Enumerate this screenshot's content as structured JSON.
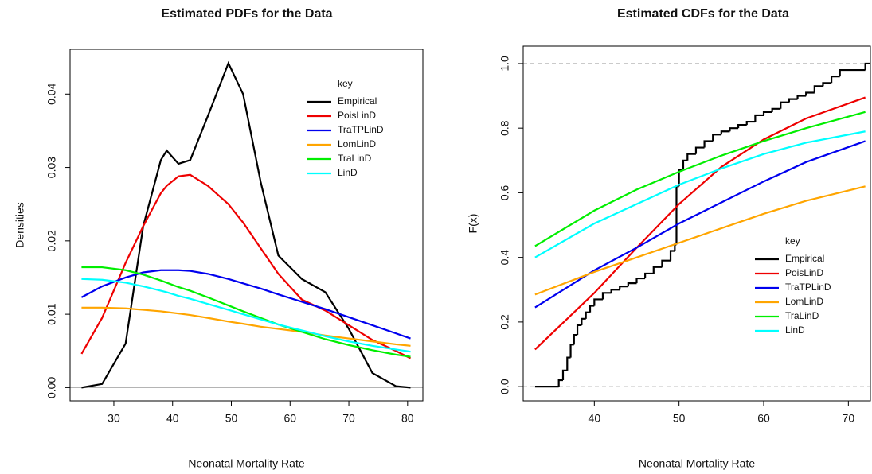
{
  "chart_data": [
    {
      "type": "line",
      "title": "Estimated PDFs for the Data",
      "x_label": "Neonatal Mortality Rate",
      "y_label": "Densities",
      "legend_title": "key",
      "legend": "top-right",
      "xlim": [
        22.55,
        82.6
      ],
      "ylim": [
        -0.0018,
        0.0461
      ],
      "xticks": [
        30,
        40,
        50,
        60,
        70,
        80
      ],
      "yticks": [
        {
          "value": 0,
          "label": "0.00"
        },
        {
          "value": 0.01,
          "label": "0.01"
        },
        {
          "value": 0.02,
          "label": "0.02"
        },
        {
          "value": 0.03,
          "label": "0.03"
        },
        {
          "value": 0.04,
          "label": "0.04"
        }
      ],
      "reference_lines": [
        0
      ],
      "reference_line_style": "solid",
      "x": [
        24.5,
        28,
        32,
        35,
        38,
        39,
        41,
        43,
        46,
        49.5,
        52,
        55,
        58,
        62,
        66,
        70,
        74,
        78,
        80.5
      ],
      "series": [
        {
          "name": "Empirical",
          "color": "#000000",
          "values": [
            0,
            0.0005,
            0.006,
            0.022,
            0.031,
            0.0323,
            0.0305,
            0.031,
            0.037,
            0.0442,
            0.04,
            0.028,
            0.018,
            0.0148,
            0.013,
            0.008,
            0.002,
            0.0002,
            0
          ]
        },
        {
          "name": "PoisLinD",
          "color": "#ee0000",
          "values": [
            0.0046,
            0.0095,
            0.017,
            0.022,
            0.0265,
            0.0275,
            0.0288,
            0.029,
            0.0275,
            0.025,
            0.0225,
            0.019,
            0.0155,
            0.012,
            0.0105,
            0.0085,
            0.0065,
            0.005,
            0.004
          ]
        },
        {
          "name": "TraTPLinD",
          "color": "#0000ee",
          "values": [
            0.0123,
            0.0138,
            0.015,
            0.0157,
            0.016,
            0.016,
            0.016,
            0.0159,
            0.0155,
            0.0148,
            0.0142,
            0.0135,
            0.0127,
            0.0117,
            0.0107,
            0.0096,
            0.0085,
            0.0074,
            0.0067
          ]
        },
        {
          "name": "LomLinD",
          "color": "#ffa500",
          "values": [
            0.0109,
            0.0109,
            0.0108,
            0.0106,
            0.0104,
            0.0103,
            0.0101,
            0.0099,
            0.0095,
            0.009,
            0.0087,
            0.0083,
            0.008,
            0.0076,
            0.0071,
            0.0067,
            0.0063,
            0.0059,
            0.0057
          ]
        },
        {
          "name": "TraLinD",
          "color": "#00ee00",
          "values": [
            0.0164,
            0.0164,
            0.016,
            0.0154,
            0.0146,
            0.0143,
            0.0137,
            0.0132,
            0.0123,
            0.0112,
            0.0104,
            0.0095,
            0.0086,
            0.0076,
            0.0066,
            0.0058,
            0.0051,
            0.0045,
            0.0042
          ]
        },
        {
          "name": "LinD",
          "color": "#00ffff",
          "values": [
            0.0148,
            0.0147,
            0.0143,
            0.0138,
            0.0132,
            0.013,
            0.0125,
            0.0121,
            0.0114,
            0.0106,
            0.01,
            0.0093,
            0.0086,
            0.0078,
            0.007,
            0.0063,
            0.0057,
            0.0052,
            0.0049
          ]
        }
      ]
    },
    {
      "type": "line",
      "title": "Estimated CDFs for the Data",
      "x_label": "Neonatal Mortality Rate",
      "y_label": "F(x)",
      "legend_title": "key",
      "legend": "bottom-right",
      "xlim": [
        31.6,
        72.6
      ],
      "ylim": [
        -0.044,
        1.054
      ],
      "xticks": [
        40,
        50,
        60,
        70
      ],
      "yticks": [
        {
          "value": 0,
          "label": "0.0"
        },
        {
          "value": 0.2,
          "label": "0.2"
        },
        {
          "value": 0.4,
          "label": "0.4"
        },
        {
          "value": 0.6,
          "label": "0.6"
        },
        {
          "value": 0.8,
          "label": "0.8"
        },
        {
          "value": 1,
          "label": "1.0"
        }
      ],
      "reference_lines": [
        0,
        1
      ],
      "reference_line_style": "dashed",
      "series": [
        {
          "name": "Empirical",
          "color": "#000000",
          "step": true,
          "x": [
            33,
            35.8,
            36.3,
            36.8,
            37.2,
            37.6,
            38,
            38.5,
            39,
            39.5,
            40,
            41,
            42,
            43,
            44,
            45,
            46,
            47,
            48,
            49,
            49.5,
            49.7,
            50,
            50.5,
            51,
            52,
            53,
            54,
            55,
            56,
            57,
            58,
            59,
            60,
            61,
            62,
            63,
            64,
            65,
            66,
            67,
            68,
            69,
            72
          ],
          "values": [
            0,
            0.02,
            0.05,
            0.09,
            0.13,
            0.16,
            0.19,
            0.21,
            0.23,
            0.25,
            0.27,
            0.29,
            0.3,
            0.31,
            0.32,
            0.335,
            0.35,
            0.37,
            0.39,
            0.42,
            0.44,
            0.62,
            0.67,
            0.7,
            0.72,
            0.74,
            0.76,
            0.78,
            0.79,
            0.8,
            0.81,
            0.82,
            0.84,
            0.85,
            0.86,
            0.88,
            0.89,
            0.9,
            0.91,
            0.93,
            0.94,
            0.96,
            0.98,
            1
          ]
        },
        {
          "name": "PoisLinD",
          "color": "#ee0000",
          "x": [
            33,
            40,
            45,
            50,
            55,
            60,
            65,
            72
          ],
          "values": [
            0.115,
            0.29,
            0.43,
            0.565,
            0.68,
            0.765,
            0.83,
            0.895
          ]
        },
        {
          "name": "TraTPLinD",
          "color": "#0000ee",
          "x": [
            33,
            40,
            45,
            50,
            55,
            60,
            65,
            72
          ],
          "values": [
            0.245,
            0.36,
            0.43,
            0.505,
            0.57,
            0.635,
            0.695,
            0.76
          ]
        },
        {
          "name": "LomLinD",
          "color": "#ffa500",
          "x": [
            33,
            40,
            45,
            50,
            55,
            60,
            65,
            72
          ],
          "values": [
            0.285,
            0.355,
            0.4,
            0.445,
            0.49,
            0.535,
            0.575,
            0.62
          ]
        },
        {
          "name": "TraLinD",
          "color": "#00ee00",
          "x": [
            33,
            40,
            45,
            50,
            55,
            60,
            65,
            72
          ],
          "values": [
            0.435,
            0.545,
            0.61,
            0.665,
            0.715,
            0.76,
            0.8,
            0.85
          ]
        },
        {
          "name": "LinD",
          "color": "#00ffff",
          "x": [
            33,
            40,
            45,
            50,
            55,
            60,
            65,
            72
          ],
          "values": [
            0.4,
            0.505,
            0.565,
            0.625,
            0.675,
            0.72,
            0.755,
            0.79
          ]
        }
      ]
    }
  ]
}
